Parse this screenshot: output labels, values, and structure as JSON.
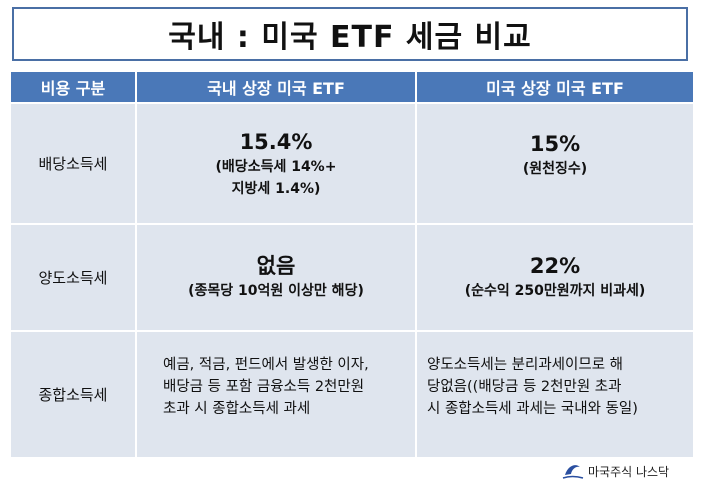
{
  "title": "국내 : 미국 ETF 세금 비교",
  "headers": [
    "비용 구분",
    "국내 상장 미국 ETF",
    "미국 상장 미국 ETF"
  ],
  "rows": [
    {
      "category": "배당소득세",
      "domestic_main": "15.4%",
      "domestic_sub_1": "(배당소득세 14%+",
      "domestic_sub_2": "지방세 1.4%)",
      "us_main": "15%",
      "us_sub": "(원천징수)"
    },
    {
      "category": "양도소득세",
      "domestic_main": "없음",
      "domestic_sub": "(종목당 10억원 이상만 해당)",
      "us_main": "22%",
      "us_sub": "(순수익 250만원까지 비과세)"
    },
    {
      "category": "종합소득세",
      "domestic_text_1": "예금, 적금, 펀드에서 발생한 이자,",
      "domestic_text_2": "배당금 등 포함 금융소득 2천만원",
      "domestic_text_3": "초과 시 종합소득세 과세",
      "us_text_1": "양도소득세는 분리과세이므로 해",
      "us_text_2": "당없음((배당금 등 2천만원 초과",
      "us_text_3": "시 종합소득세 과세는 국내와 동일)"
    }
  ],
  "footer": {
    "brand": "마국주식 나스닥"
  },
  "colors": {
    "header_bg": "#4a78b8",
    "cell_bg": "#dfe5ee",
    "title_border": "#4a6fa5"
  }
}
